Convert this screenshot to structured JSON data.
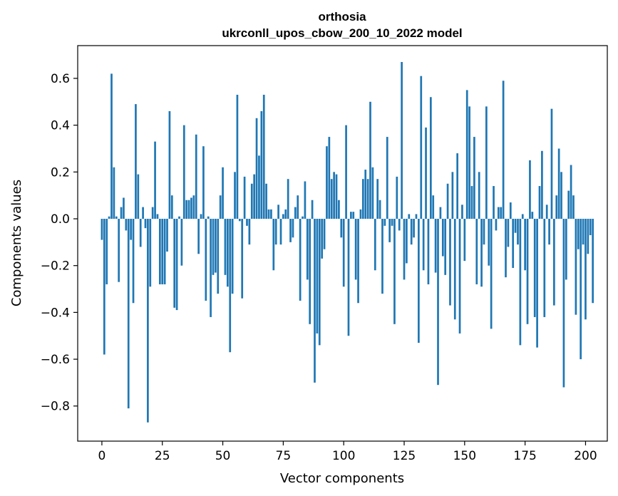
{
  "chart_data": {
    "type": "bar",
    "title": "orthosia",
    "subtitle": "ukrconll_upos_cbow_200_10_2022 model",
    "xlabel": "Vector components",
    "ylabel": "Components values",
    "xlim": [
      -10,
      209
    ],
    "ylim": [
      -0.95,
      0.74
    ],
    "xticks": [
      0,
      25,
      50,
      75,
      100,
      125,
      150,
      175,
      200
    ],
    "xtick_labels": [
      "0",
      "25",
      "50",
      "75",
      "100",
      "125",
      "150",
      "175",
      "200"
    ],
    "yticks": [
      -0.8,
      -0.6,
      -0.4,
      -0.2,
      0.0,
      0.2,
      0.4,
      0.6
    ],
    "ytick_labels": [
      "−0.8",
      "−0.6",
      "−0.4",
      "−0.2",
      "0.0",
      "0.2",
      "0.4",
      "0.6"
    ],
    "grid": false,
    "color": "#1f77b4",
    "x_start": 0,
    "values": [
      -0.09,
      -0.58,
      -0.28,
      0.01,
      0.62,
      0.22,
      0.01,
      -0.27,
      0.05,
      0.09,
      -0.05,
      -0.81,
      -0.09,
      -0.36,
      0.49,
      0.19,
      -0.12,
      0.05,
      -0.04,
      -0.87,
      -0.29,
      0.05,
      0.33,
      0.02,
      -0.28,
      -0.28,
      -0.28,
      -0.14,
      0.46,
      0.1,
      -0.38,
      -0.39,
      0.01,
      -0.2,
      0.4,
      0.08,
      0.08,
      0.09,
      0.1,
      0.36,
      -0.15,
      0.02,
      0.31,
      -0.35,
      0.01,
      -0.42,
      -0.24,
      -0.23,
      -0.32,
      0.1,
      0.22,
      -0.24,
      -0.29,
      -0.57,
      -0.32,
      0.2,
      0.53,
      -0.01,
      -0.34,
      0.18,
      -0.03,
      -0.11,
      0.15,
      0.19,
      0.43,
      0.27,
      0.46,
      0.53,
      0.15,
      0.04,
      0.04,
      -0.22,
      -0.11,
      0.06,
      -0.11,
      0.02,
      0.04,
      0.17,
      -0.1,
      -0.08,
      0.05,
      0.1,
      -0.35,
      0.01,
      0.16,
      -0.26,
      -0.45,
      0.08,
      -0.7,
      -0.49,
      -0.54,
      -0.17,
      -0.13,
      0.31,
      0.35,
      0.17,
      0.2,
      0.19,
      0.08,
      -0.08,
      -0.29,
      0.4,
      -0.5,
      0.03,
      0.03,
      -0.26,
      -0.36,
      0.04,
      0.17,
      0.21,
      0.17,
      0.5,
      0.22,
      -0.22,
      0.17,
      0.08,
      -0.32,
      -0.03,
      0.35,
      -0.1,
      -0.03,
      -0.45,
      0.18,
      -0.05,
      0.67,
      -0.26,
      -0.19,
      0.02,
      -0.11,
      -0.08,
      0.02,
      -0.53,
      0.61,
      -0.22,
      0.39,
      -0.28,
      0.52,
      0.1,
      -0.23,
      -0.71,
      0.05,
      -0.16,
      -0.24,
      0.15,
      -0.37,
      0.2,
      -0.43,
      0.28,
      -0.49,
      0.06,
      -0.18,
      0.55,
      0.48,
      0.14,
      0.35,
      -0.28,
      0.2,
      -0.29,
      -0.11,
      0.48,
      -0.2,
      -0.47,
      0.14,
      -0.05,
      0.05,
      0.05,
      0.59,
      -0.25,
      -0.12,
      0.07,
      -0.21,
      -0.06,
      -0.11,
      -0.54,
      0.02,
      -0.22,
      -0.45,
      0.25,
      0.03,
      -0.42,
      -0.55,
      0.14,
      0.29,
      -0.42,
      0.06,
      -0.11,
      0.47,
      -0.37,
      0.1,
      0.3,
      0.2,
      -0.72,
      -0.26,
      0.12,
      0.23,
      0.1,
      -0.41,
      -0.13,
      -0.6,
      -0.11,
      -0.43,
      -0.15,
      -0.07,
      -0.36
    ]
  }
}
